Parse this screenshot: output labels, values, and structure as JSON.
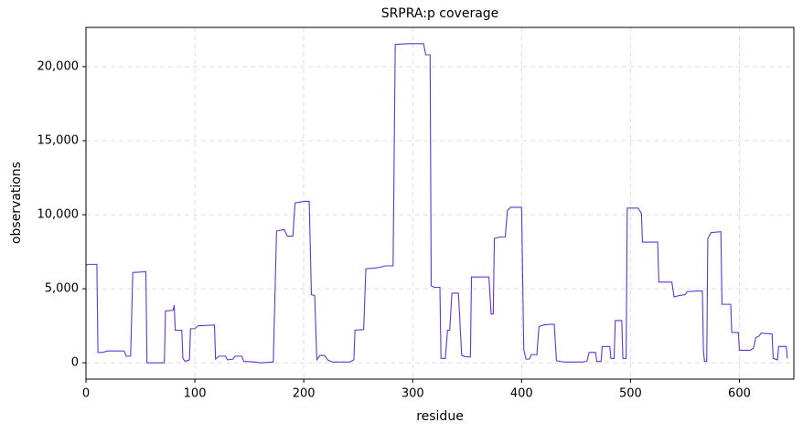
{
  "chart_data": {
    "type": "line",
    "title": "SRPRA:p coverage",
    "x_label": "residue",
    "y_label": "observations",
    "x": [
      0,
      2,
      10,
      11,
      15,
      20,
      35,
      37,
      41,
      43,
      55,
      56,
      72,
      73,
      80,
      81,
      82,
      88,
      89,
      91,
      95,
      96,
      100,
      103,
      118,
      119,
      122,
      128,
      130,
      135,
      137,
      143,
      145,
      155,
      160,
      172,
      175,
      182,
      185,
      190,
      192,
      200,
      205,
      207,
      210,
      212,
      215,
      219,
      222,
      226,
      232,
      242,
      246,
      247,
      255,
      257,
      265,
      270,
      275,
      282,
      284,
      295,
      310,
      312,
      316,
      317,
      320,
      325,
      326,
      330,
      332,
      334,
      336,
      342,
      345,
      349,
      353,
      354,
      370,
      372,
      374,
      375,
      380,
      385,
      387,
      390,
      400,
      402,
      404,
      407,
      409,
      414,
      416,
      420,
      425,
      430,
      432,
      435,
      440,
      455,
      460,
      462,
      468,
      469,
      473,
      474,
      481,
      482,
      485,
      486,
      492,
      493,
      496,
      497,
      507,
      510,
      511,
      525,
      526,
      538,
      540,
      545,
      550,
      552,
      560,
      566,
      567,
      568,
      570,
      571,
      574,
      583,
      584,
      592,
      593,
      599,
      600,
      610,
      613,
      615,
      618,
      620,
      630,
      631,
      635,
      636,
      643,
      644
    ],
    "series": [
      {
        "name": "coverage",
        "color": "#6236d4",
        "values": [
          6600,
          6650,
          6650,
          700,
          700,
          800,
          800,
          450,
          450,
          6100,
          6150,
          0,
          0,
          3500,
          3550,
          3900,
          2200,
          2200,
          300,
          100,
          200,
          2300,
          2300,
          2500,
          2550,
          250,
          450,
          450,
          200,
          250,
          450,
          450,
          100,
          50,
          0,
          50,
          8900,
          9000,
          8550,
          8550,
          10800,
          10900,
          10900,
          4600,
          4550,
          200,
          500,
          500,
          200,
          50,
          50,
          50,
          200,
          2200,
          2250,
          6350,
          6400,
          6450,
          6550,
          6550,
          21500,
          21550,
          21550,
          20800,
          20800,
          5200,
          5100,
          5100,
          300,
          300,
          2200,
          2200,
          4700,
          4700,
          500,
          400,
          400,
          5800,
          5800,
          3300,
          3300,
          8400,
          8500,
          8500,
          10300,
          10500,
          10500,
          900,
          250,
          250,
          550,
          550,
          2450,
          2550,
          2600,
          2600,
          150,
          100,
          50,
          50,
          100,
          700,
          700,
          100,
          100,
          1100,
          1100,
          300,
          300,
          2850,
          2850,
          300,
          300,
          10450,
          10450,
          10100,
          8150,
          8150,
          5450,
          5450,
          4450,
          4550,
          4600,
          4800,
          4850,
          4850,
          800,
          100,
          100,
          8400,
          8800,
          8850,
          3950,
          3950,
          2050,
          2050,
          850,
          850,
          1000,
          1700,
          1800,
          2000,
          1950,
          300,
          200,
          1100,
          1100,
          300
        ]
      }
    ],
    "xlim": [
      0,
      650
    ],
    "xticks": [
      0,
      100,
      200,
      300,
      400,
      500,
      600
    ],
    "ylim": [
      -1100,
      22650
    ],
    "yticks": [
      0,
      {
        "value": 5000,
        "label": "5,000"
      },
      {
        "value": 10000,
        "label": "10,000"
      },
      {
        "value": 15000,
        "label": "15,000"
      },
      {
        "value": 20000,
        "label": "20,000"
      }
    ],
    "grid": true
  }
}
